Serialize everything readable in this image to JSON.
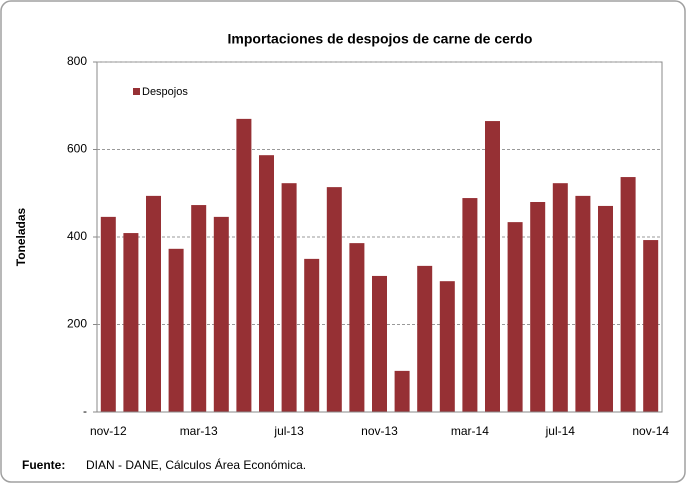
{
  "chart_data": {
    "type": "bar",
    "title": "Importaciones de despojos de carne de cerdo",
    "y_label": "Toneladas",
    "categories": [
      "nov-12",
      null,
      null,
      null,
      "mar-13",
      null,
      null,
      null,
      "jul-13",
      null,
      null,
      null,
      "nov-13",
      null,
      null,
      null,
      "mar-14",
      null,
      null,
      null,
      "jul-14",
      null,
      null,
      null,
      "nov-14"
    ],
    "series": [
      {
        "name": "Despojos",
        "color": "#963034",
        "values": [
          446,
          409,
          494,
          373,
          473,
          446,
          670,
          587,
          523,
          350,
          514,
          386,
          311,
          94,
          334,
          299,
          489,
          665,
          434,
          480,
          523,
          494,
          471,
          537,
          393
        ]
      }
    ],
    "ylim": [
      0,
      800
    ],
    "yticks": [
      {
        "value": 0,
        "label": "-"
      },
      200,
      400,
      600,
      800
    ],
    "grid": true,
    "legend": "top-left",
    "source_label": "Fuente:",
    "source": "DIAN - DANE,  Cálculos Área Económica."
  }
}
